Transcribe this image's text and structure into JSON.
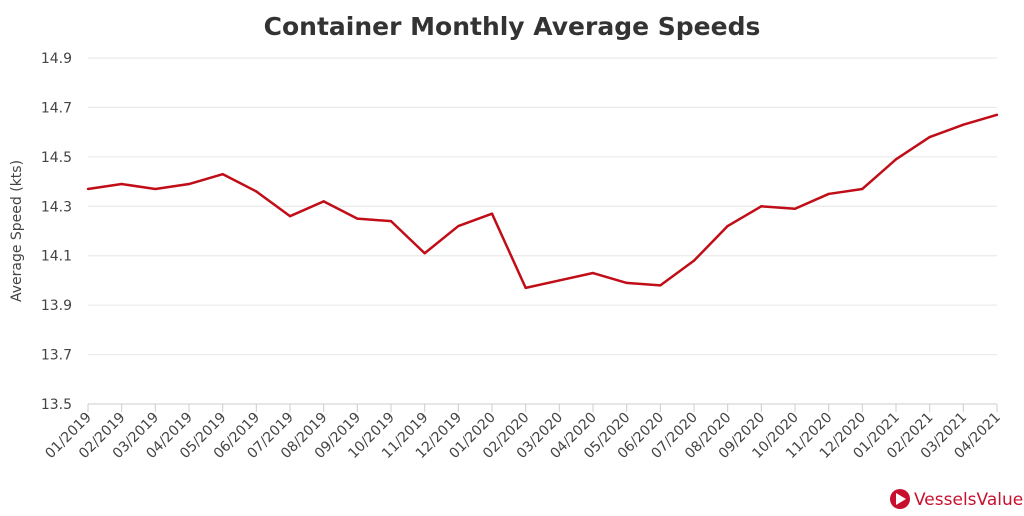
{
  "chart_data": {
    "type": "line",
    "title": "Container Monthly Average Speeds",
    "xlabel": "",
    "ylabel": "Average Speed (kts)",
    "ylim": [
      13.5,
      14.9
    ],
    "yticks": [
      "13.5",
      "13.7",
      "13.9",
      "14.1",
      "14.3",
      "14.5",
      "14.7",
      "14.9"
    ],
    "grid": true,
    "categories": [
      "01/2019",
      "02/2019",
      "03/2019",
      "04/2019",
      "05/2019",
      "06/2019",
      "07/2019",
      "08/2019",
      "09/2019",
      "10/2019",
      "11/2019",
      "12/2019",
      "01/2020",
      "02/2020",
      "03/2020",
      "04/2020",
      "05/2020",
      "06/2020",
      "07/2020",
      "08/2020",
      "09/2020",
      "10/2020",
      "11/2020",
      "12/2020",
      "01/2021",
      "02/2021",
      "03/2021",
      "04/2021"
    ],
    "series": [
      {
        "values": [
          14.37,
          14.39,
          14.37,
          14.39,
          14.43,
          14.36,
          14.26,
          14.32,
          14.25,
          14.24,
          14.11,
          14.22,
          14.27,
          13.97,
          14.0,
          14.03,
          13.99,
          13.98,
          14.08,
          14.22,
          14.3,
          14.29,
          14.35,
          14.37,
          14.49,
          14.58,
          14.63,
          14.67
        ],
        "color": "#c00d17"
      }
    ]
  },
  "logo": {
    "text": "VesselsValue",
    "color": "#c8102e"
  }
}
